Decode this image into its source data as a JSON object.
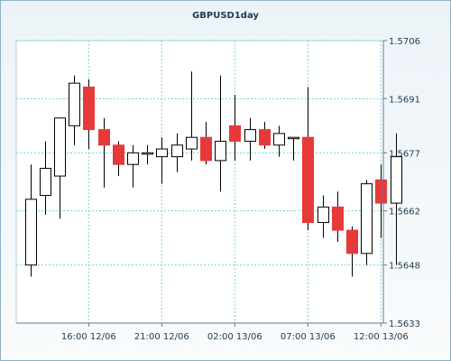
{
  "chart_data": {
    "type": "candlestick",
    "title": "GBPUSD1day",
    "ylim": [
      1.5633,
      1.5706
    ],
    "yticks": [
      "1.5706",
      "1.5691",
      "1.5677",
      "1.5662",
      "1.5648",
      "1.5633"
    ],
    "xticks": [
      "16:00 12/06",
      "21:00 12/06",
      "02:00 13/06",
      "07:00 13/06",
      "12:00 13/06"
    ],
    "grid": true,
    "colors": {
      "up_fill": "#ffffff",
      "down_fill": "#e63a3a",
      "outline": "#000000",
      "grid": "#7fcfcf",
      "axis": "#5b7d94"
    },
    "candles": [
      {
        "open": 1.5648,
        "high": 1.5674,
        "low": 1.5645,
        "close": 1.5665
      },
      {
        "open": 1.5666,
        "high": 1.568,
        "low": 1.5661,
        "close": 1.5673
      },
      {
        "open": 1.5671,
        "high": 1.5686,
        "low": 1.566,
        "close": 1.5686
      },
      {
        "open": 1.5684,
        "high": 1.5697,
        "low": 1.5679,
        "close": 1.5695
      },
      {
        "open": 1.5694,
        "high": 1.5696,
        "low": 1.5678,
        "close": 1.5683
      },
      {
        "open": 1.5683,
        "high": 1.5686,
        "low": 1.5668,
        "close": 1.5679
      },
      {
        "open": 1.5679,
        "high": 1.568,
        "low": 1.5671,
        "close": 1.5674
      },
      {
        "open": 1.5674,
        "high": 1.5679,
        "low": 1.5668,
        "close": 1.5677
      },
      {
        "open": 1.5677,
        "high": 1.5679,
        "low": 1.5674,
        "close": 1.5677
      },
      {
        "open": 1.5676,
        "high": 1.5681,
        "low": 1.5669,
        "close": 1.5678
      },
      {
        "open": 1.5676,
        "high": 1.5682,
        "low": 1.5672,
        "close": 1.5679
      },
      {
        "open": 1.5678,
        "high": 1.5698,
        "low": 1.5675,
        "close": 1.5681
      },
      {
        "open": 1.5681,
        "high": 1.5685,
        "low": 1.5674,
        "close": 1.5675
      },
      {
        "open": 1.5675,
        "high": 1.5697,
        "low": 1.5667,
        "close": 1.568
      },
      {
        "open": 1.5684,
        "high": 1.5692,
        "low": 1.5675,
        "close": 1.568
      },
      {
        "open": 1.568,
        "high": 1.5686,
        "low": 1.5675,
        "close": 1.5683
      },
      {
        "open": 1.5683,
        "high": 1.5685,
        "low": 1.5678,
        "close": 1.5679
      },
      {
        "open": 1.5679,
        "high": 1.5684,
        "low": 1.5676,
        "close": 1.5682
      },
      {
        "open": 1.5681,
        "high": 1.5681,
        "low": 1.5675,
        "close": 1.5681
      },
      {
        "open": 1.5681,
        "high": 1.5694,
        "low": 1.5657,
        "close": 1.5659
      },
      {
        "open": 1.5659,
        "high": 1.5666,
        "low": 1.5655,
        "close": 1.5663
      },
      {
        "open": 1.5663,
        "high": 1.5667,
        "low": 1.5654,
        "close": 1.5657
      },
      {
        "open": 1.5657,
        "high": 1.5658,
        "low": 1.5645,
        "close": 1.5651
      },
      {
        "open": 1.5651,
        "high": 1.567,
        "low": 1.5648,
        "close": 1.5669
      },
      {
        "open": 1.567,
        "high": 1.5674,
        "low": 1.5655,
        "close": 1.5664
      },
      {
        "open": 1.5664,
        "high": 1.5682,
        "low": 1.5648,
        "close": 1.5676
      }
    ]
  }
}
